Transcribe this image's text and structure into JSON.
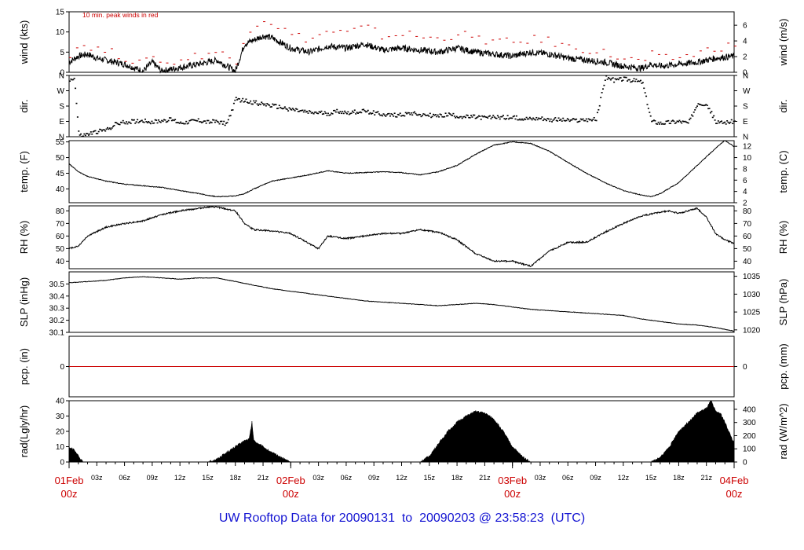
{
  "footer": {
    "prefix": "UW Rooftop Data for",
    "start": "20090131",
    "to": "to",
    "end": "20090203",
    "at": "@",
    "time": "23:58:23",
    "tz": "(UTC)",
    "color": "#1414d2"
  },
  "colors": {
    "data": "#000000",
    "peak": "#cc0000",
    "date_labels": "#cc0000",
    "frame": "#000000"
  },
  "x_axis": {
    "hours_start": 0,
    "hours_end": 72,
    "major_labels": [
      {
        "hour": 0,
        "date": "01Feb",
        "time": "00z"
      },
      {
        "hour": 24,
        "date": "02Feb",
        "time": "00z"
      },
      {
        "hour": 48,
        "date": "03Feb",
        "time": "00z"
      },
      {
        "hour": 72,
        "date": "04Feb",
        "time": "00z"
      }
    ],
    "minor_labels": [
      "03z",
      "06z",
      "09z",
      "12z",
      "15z",
      "18z",
      "21z"
    ]
  },
  "chart_data": [
    {
      "id": "wind",
      "type": "line",
      "ylabel_left": "wind (kts)",
      "ylabel_right": "wind (m/s)",
      "ylim": [
        0,
        15
      ],
      "yticks_left": [
        0,
        5,
        10,
        15
      ],
      "right_scale": 0.5144,
      "yticks_right": [
        0,
        2,
        4,
        6
      ],
      "annotation": "10 min. peak winds in red",
      "series": [
        {
          "name": "wind",
          "color": "#000000",
          "x": [
            0,
            1,
            2,
            3,
            4,
            6,
            8,
            9,
            10,
            12,
            14,
            16,
            18,
            19,
            20,
            21,
            22,
            24,
            26,
            28,
            30,
            32,
            34,
            36,
            38,
            40,
            42,
            44,
            46,
            48,
            50,
            52,
            54,
            56,
            58,
            60,
            62,
            63,
            64,
            66,
            68,
            70,
            72
          ],
          "values": [
            2.5,
            4,
            4.5,
            3.5,
            3,
            2,
            0.3,
            2.5,
            0.3,
            1.2,
            2,
            3,
            0.3,
            7,
            8,
            9,
            8.5,
            6,
            5,
            6.5,
            6,
            7,
            5.5,
            6,
            5.5,
            5,
            6,
            5,
            4.5,
            4,
            5,
            4.5,
            3.5,
            3,
            2.5,
            1.5,
            1,
            2,
            1.5,
            2,
            2.5,
            3.5,
            4
          ]
        },
        {
          "name": "peak",
          "color": "#cc0000",
          "style": "dashes",
          "x": [
            0,
            1,
            2,
            3,
            4,
            6,
            8,
            9,
            10,
            12,
            14,
            16,
            18,
            19,
            20,
            21,
            22,
            24,
            26,
            28,
            30,
            32,
            34,
            36,
            38,
            40,
            42,
            44,
            46,
            48,
            50,
            52,
            54,
            56,
            58,
            60,
            62,
            63,
            64,
            66,
            68,
            70,
            72
          ],
          "values": [
            4.5,
            6.5,
            6.5,
            5.5,
            5,
            3.5,
            1.5,
            4.5,
            1.5,
            3,
            4,
            5,
            2,
            10,
            11.5,
            13,
            12,
            9,
            8,
            10,
            9.5,
            11,
            8.5,
            9.5,
            8.5,
            8,
            9.5,
            8,
            7.5,
            7,
            8,
            7.5,
            6,
            5.5,
            4.5,
            3,
            2.5,
            4,
            3,
            3.5,
            4.5,
            6,
            6.5
          ]
        }
      ]
    },
    {
      "id": "dir",
      "type": "scatter",
      "ylabel_left": "dir.",
      "ylabel_right": "dir.",
      "ylim": [
        0,
        360
      ],
      "yticks_left": [
        0,
        90,
        180,
        270,
        360
      ],
      "yticks_left_labels": [
        "N",
        "E",
        "S",
        "W",
        "N"
      ],
      "yticks_right": [
        0,
        90,
        180,
        270,
        360
      ],
      "yticks_right_labels": [
        "N",
        "E",
        "S",
        "W",
        "N"
      ],
      "series": [
        {
          "name": "dir",
          "color": "#000000",
          "x": [
            0,
            0.5,
            1,
            1.5,
            2,
            3,
            4,
            5,
            6,
            7,
            8,
            9,
            10,
            11,
            12,
            13,
            14,
            15,
            16,
            17,
            18,
            19,
            20,
            21,
            22,
            23,
            24,
            25,
            26,
            27,
            28,
            29,
            30,
            31,
            32,
            33,
            34,
            35,
            36,
            37,
            38,
            39,
            40,
            41,
            42,
            43,
            44,
            45,
            46,
            47,
            48,
            49,
            50,
            51,
            52,
            53,
            54,
            55,
            56,
            57,
            58,
            59,
            60,
            61,
            62,
            63,
            64,
            65,
            66,
            67,
            68,
            69,
            70,
            71,
            72
          ],
          "values": [
            330,
            350,
            5,
            8,
            15,
            30,
            40,
            75,
            85,
            90,
            95,
            85,
            95,
            100,
            80,
            90,
            95,
            85,
            90,
            75,
            220,
            210,
            200,
            190,
            180,
            170,
            160,
            150,
            140,
            140,
            135,
            150,
            140,
            145,
            150,
            140,
            130,
            125,
            130,
            140,
            130,
            125,
            120,
            130,
            120,
            115,
            115,
            110,
            115,
            115,
            110,
            110,
            105,
            110,
            100,
            100,
            95,
            95,
            100,
            100,
            350,
            330,
            340,
            330,
            320,
            90,
            80,
            85,
            90,
            80,
            200,
            190,
            80,
            85,
            90
          ]
        }
      ]
    },
    {
      "id": "temp",
      "type": "line",
      "ylabel_left": "temp. (F)",
      "ylabel_right": "temp. (C)",
      "ylim": [
        35.6,
        55.4
      ],
      "yticks_left": [
        40,
        45,
        50,
        55
      ],
      "yticks_right_c": [
        2,
        4,
        6,
        8,
        10,
        12
      ],
      "series": [
        {
          "name": "temp",
          "color": "#000000",
          "x": [
            0,
            1,
            2,
            4,
            6,
            8,
            10,
            12,
            14,
            16,
            18,
            19,
            20,
            22,
            24,
            26,
            28,
            30,
            32,
            34,
            36,
            38,
            40,
            42,
            44,
            46,
            48,
            50,
            52,
            54,
            56,
            58,
            60,
            62,
            63,
            64,
            66,
            68,
            70,
            71,
            72
          ],
          "values": [
            48,
            45.5,
            44,
            42.5,
            41.5,
            41,
            40.5,
            39.5,
            38.5,
            37.5,
            37.8,
            38.5,
            40,
            42.5,
            43.5,
            44.5,
            45.8,
            45,
            45.2,
            45.5,
            45.2,
            44.5,
            45.5,
            47.5,
            51,
            54,
            55,
            54.5,
            52,
            48.5,
            45,
            42,
            39.5,
            38,
            37.5,
            38.5,
            42,
            47.5,
            53,
            55.5,
            53.5
          ]
        }
      ]
    },
    {
      "id": "rh",
      "type": "line",
      "ylabel_left": "RH (%)",
      "ylabel_right": "RH (%)",
      "ylim": [
        34,
        84
      ],
      "yticks_left": [
        40,
        50,
        60,
        70,
        80
      ],
      "yticks_right": [
        40,
        50,
        60,
        70,
        80
      ],
      "series": [
        {
          "name": "rh",
          "color": "#000000",
          "x": [
            0,
            1,
            2,
            4,
            6,
            8,
            10,
            12,
            14,
            15,
            16,
            18,
            19,
            20,
            22,
            24,
            26,
            27,
            28,
            30,
            32,
            34,
            36,
            38,
            40,
            42,
            44,
            46,
            48,
            50,
            51,
            52,
            54,
            56,
            58,
            60,
            62,
            64,
            65,
            66,
            68,
            69,
            70,
            71,
            72
          ],
          "values": [
            50,
            52,
            60,
            67,
            70,
            72,
            77,
            80,
            82,
            83,
            83,
            80,
            70,
            65,
            64,
            62,
            54,
            50,
            60,
            58,
            60,
            62,
            62,
            65,
            63,
            57,
            46,
            40,
            40,
            36,
            42,
            48,
            55,
            55,
            63,
            70,
            76,
            79,
            80,
            78,
            82,
            75,
            62,
            57,
            54
          ]
        }
      ]
    },
    {
      "id": "slp",
      "type": "line",
      "ylabel_left": "SLP (inHg)",
      "ylabel_right": "SLP (hPa)",
      "ylim": [
        30.1,
        30.6
      ],
      "yticks_left": [
        30.1,
        30.2,
        30.3,
        30.4,
        30.5
      ],
      "yticks_right_hpa": [
        1020,
        1025,
        1030,
        1035
      ],
      "series": [
        {
          "name": "slp",
          "color": "#000000",
          "x": [
            0,
            2,
            4,
            6,
            8,
            10,
            12,
            14,
            16,
            18,
            20,
            22,
            24,
            26,
            28,
            30,
            32,
            34,
            36,
            38,
            40,
            42,
            44,
            46,
            48,
            50,
            52,
            54,
            56,
            58,
            60,
            62,
            64,
            66,
            68,
            70,
            72
          ],
          "values": [
            30.51,
            30.52,
            30.53,
            30.55,
            30.56,
            30.55,
            30.54,
            30.55,
            30.55,
            30.52,
            30.49,
            30.46,
            30.44,
            30.42,
            30.4,
            30.38,
            30.36,
            30.35,
            30.34,
            30.33,
            30.32,
            30.33,
            30.34,
            30.33,
            30.31,
            30.29,
            30.28,
            30.27,
            30.26,
            30.25,
            30.24,
            30.21,
            30.19,
            30.17,
            30.16,
            30.14,
            30.11
          ]
        }
      ]
    },
    {
      "id": "pcp",
      "type": "line",
      "ylabel_left": "pcp. (in)",
      "ylabel_right": "pcp. (mm)",
      "ylim": [
        -1,
        1
      ],
      "yticks_left": [
        0
      ],
      "yticks_right": [
        0
      ],
      "series": [
        {
          "name": "pcp",
          "color": "#cc0000",
          "x": [
            0,
            72
          ],
          "values": [
            0,
            0
          ]
        }
      ]
    },
    {
      "id": "rad",
      "type": "area",
      "ylabel_left": "rad(Lgly/hr)",
      "ylabel_right": "rad (W/m^2)",
      "ylim": [
        0,
        40
      ],
      "yticks_left": [
        0,
        10,
        20,
        30,
        40
      ],
      "right_scale": 11.63,
      "yticks_right": [
        0,
        100,
        200,
        300,
        400
      ],
      "series": [
        {
          "name": "rad",
          "color": "#000000",
          "x": [
            0,
            0.5,
            1,
            1.5,
            15,
            16,
            17,
            18,
            19,
            19.5,
            19.8,
            20,
            20.5,
            21,
            22,
            23,
            24,
            38,
            39,
            40,
            41,
            42,
            43,
            44,
            45,
            46,
            47,
            48,
            49,
            50,
            63,
            64,
            65,
            66,
            67,
            68,
            69,
            69.5,
            70,
            70.5,
            71,
            72
          ],
          "values": [
            10,
            8,
            4,
            0,
            0,
            2,
            6,
            10,
            14,
            15,
            26,
            14,
            12,
            10,
            6,
            3,
            0,
            0,
            4,
            12,
            20,
            26,
            30,
            33,
            32,
            28,
            20,
            10,
            4,
            0,
            0,
            3,
            10,
            20,
            26,
            32,
            35,
            40,
            33,
            32,
            26,
            12
          ]
        }
      ]
    }
  ]
}
